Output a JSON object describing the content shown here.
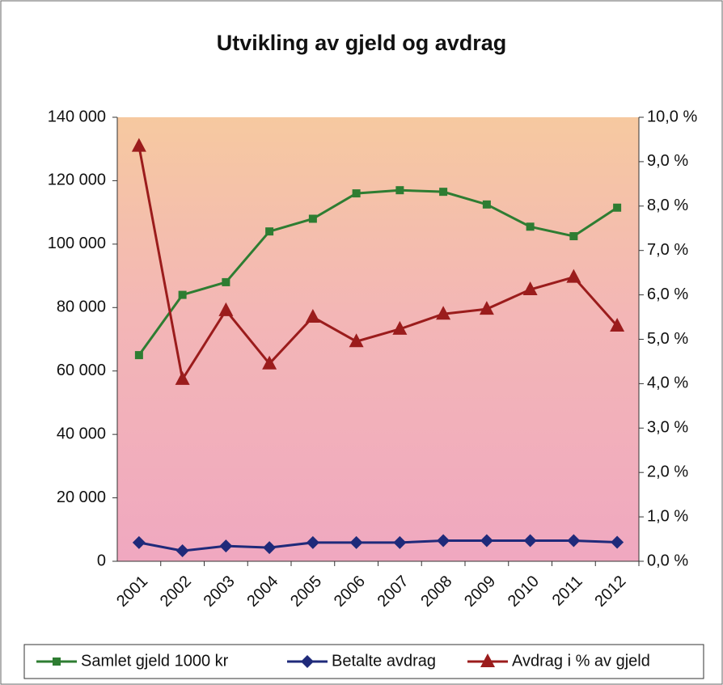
{
  "chart_data": {
    "type": "line",
    "title": "Utvikling av gjeld og avdrag",
    "categories": [
      "2001",
      "2002",
      "2003",
      "2004",
      "2005",
      "2006",
      "2007",
      "2008",
      "2009",
      "2010",
      "2011",
      "2012"
    ],
    "series": [
      {
        "name": "Samlet gjeld 1000 kr",
        "color": "#2e7d32",
        "marker": "square",
        "values": [
          65000,
          84000,
          88000,
          104000,
          108000,
          116000,
          117000,
          116500,
          112500,
          105500,
          102500,
          111500
        ]
      },
      {
        "name": "Betalte avdrag",
        "color": "#1f2a7a",
        "marker": "diamond",
        "values": [
          5900,
          3300,
          4800,
          4300,
          5900,
          5900,
          5900,
          6500,
          6500,
          6500,
          6500,
          6000
        ]
      },
      {
        "name": "Avdrag i % av gjeld",
        "color": "#9b1c1c",
        "marker": "triangle",
        "axis": "y2",
        "values": [
          9.35,
          4.1,
          5.65,
          4.45,
          5.5,
          4.95,
          5.23,
          5.57,
          5.68,
          6.12,
          6.4,
          5.3
        ]
      }
    ],
    "ylim": [
      0,
      140000
    ],
    "yticks": [
      0,
      {
        "value": 20000,
        "label": "20 000"
      },
      {
        "value": 40000,
        "label": "40 000"
      },
      {
        "value": 60000,
        "label": "60 000"
      },
      {
        "value": 80000,
        "label": "80 000"
      },
      {
        "value": 100000,
        "label": "100 000"
      },
      {
        "value": 120000,
        "label": "120 000"
      },
      {
        "value": 140000,
        "label": "140 000"
      }
    ],
    "y2lim": [
      0,
      10
    ],
    "y2ticks": [
      {
        "value": 0,
        "label": "0,0 %"
      },
      {
        "value": 1,
        "label": "1,0 %"
      },
      {
        "value": 2,
        "label": "2,0 %"
      },
      {
        "value": 3,
        "label": "3,0 %"
      },
      {
        "value": 4,
        "label": "4,0 %"
      },
      {
        "value": 5,
        "label": "5,0 %"
      },
      {
        "value": 6,
        "label": "6,0 %"
      },
      {
        "value": 7,
        "label": "7,0 %"
      },
      {
        "value": 8,
        "label": "8,0 %"
      },
      {
        "value": 9,
        "label": "9,0 %"
      },
      {
        "value": 10,
        "label": "10,0 %"
      }
    ],
    "legend": "bottom"
  }
}
